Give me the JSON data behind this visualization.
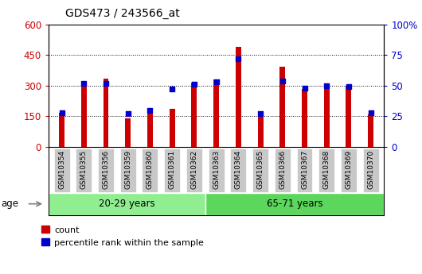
{
  "title": "GDS473 / 243566_at",
  "categories": [
    "GSM10354",
    "GSM10355",
    "GSM10356",
    "GSM10359",
    "GSM10360",
    "GSM10361",
    "GSM10362",
    "GSM10363",
    "GSM10364",
    "GSM10365",
    "GSM10366",
    "GSM10367",
    "GSM10368",
    "GSM10369",
    "GSM10370"
  ],
  "counts": [
    165,
    320,
    335,
    140,
    170,
    185,
    315,
    330,
    490,
    145,
    395,
    285,
    295,
    300,
    160
  ],
  "percentile_ranks": [
    28,
    52,
    52,
    27,
    30,
    47,
    51,
    53,
    72,
    27,
    54,
    48,
    50,
    49,
    28
  ],
  "group1_label": "20-29 years",
  "group2_label": "65-71 years",
  "group1_count": 7,
  "group2_count": 8,
  "left_axis_color": "#cc0000",
  "right_axis_color": "#0000cc",
  "bar_color": "#cc0000",
  "dot_color": "#0000cc",
  "ylim_left": [
    0,
    600
  ],
  "ylim_right": [
    0,
    100
  ],
  "left_ticks": [
    0,
    150,
    300,
    450,
    600
  ],
  "right_ticks": [
    0,
    25,
    50,
    75,
    100
  ],
  "right_tick_labels": [
    "0",
    "25",
    "50",
    "75",
    "100%"
  ],
  "group1_color": "#90ee90",
  "group2_color": "#5cd65c",
  "age_label": "age",
  "legend_count_label": "count",
  "legend_pct_label": "percentile rank within the sample",
  "bg_color": "#ffffff",
  "plot_bg_color": "#ffffff",
  "tick_bg_color": "#c8c8c8",
  "bar_width": 0.25
}
